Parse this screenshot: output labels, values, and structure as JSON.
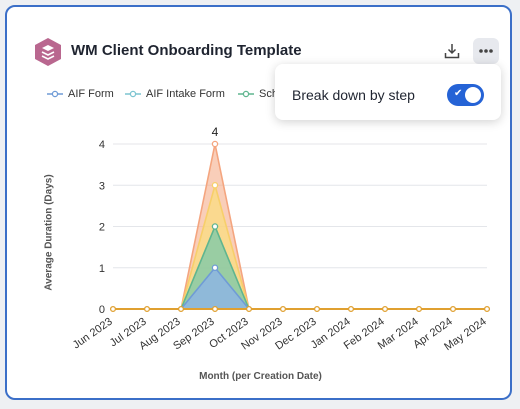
{
  "header": {
    "title": "WM Client Onboarding Template",
    "logo_icon": "layers-logo-icon",
    "download_icon": "download-icon",
    "more_icon": "more-horizontal-icon"
  },
  "legend": [
    {
      "label": "AIF Form",
      "color": "#6f9bd6"
    },
    {
      "label": "AIF Intake Form",
      "color": "#7cc4d0"
    },
    {
      "label": "Sch",
      "color": "#5fb58f"
    }
  ],
  "popover": {
    "label": "Break down by step",
    "toggle_on": true
  },
  "chart_data": {
    "type": "area",
    "xlabel": "Month (per Creation Date)",
    "ylabel": "Average Duration (Days)",
    "ylim": [
      0,
      4
    ],
    "yticks": [
      "0",
      "1",
      "2",
      "3",
      "4"
    ],
    "categories": [
      "Jun 2023",
      "Jul 2023",
      "Aug 2023",
      "Sep 2023",
      "Oct 2023",
      "Nov 2023",
      "Dec 2023",
      "Jan 2024",
      "Feb 2024",
      "Mar 2024",
      "Apr 2024",
      "May 2024"
    ],
    "series": [
      {
        "color": "#f4a57f",
        "values": [
          0,
          0,
          0,
          4,
          0,
          0,
          0,
          0,
          0,
          0,
          0,
          0
        ]
      },
      {
        "color": "#f7cf6a",
        "values": [
          0,
          0,
          0,
          3,
          0,
          0,
          0,
          0,
          0,
          0,
          0,
          0
        ]
      },
      {
        "color": "#5fb58f",
        "values": [
          0,
          0,
          0,
          2,
          0,
          0,
          0,
          0,
          0,
          0,
          0,
          0
        ]
      },
      {
        "color": "#6f9bd6",
        "values": [
          0,
          0,
          0,
          1,
          0,
          0,
          0,
          0,
          0,
          0,
          0,
          0
        ]
      }
    ],
    "annotations": [
      {
        "category": "Sep 2023",
        "text": "4"
      }
    ],
    "baseline_color": "#e0a030",
    "grid": true
  }
}
